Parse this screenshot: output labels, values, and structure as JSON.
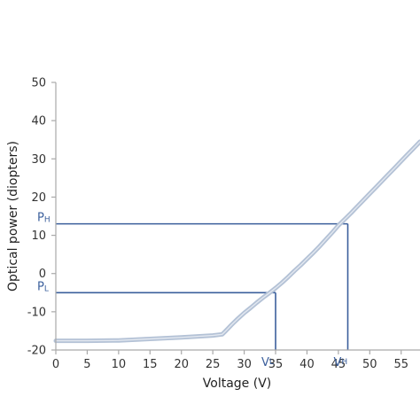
{
  "chart_data": {
    "type": "line",
    "title": "",
    "xlabel": "Voltage (V)",
    "ylabel": "Optical power (diopters)",
    "xlim": [
      0,
      58
    ],
    "ylim": [
      -20,
      50
    ],
    "grid": false,
    "x_ticks": [
      0,
      5,
      10,
      15,
      20,
      25,
      30,
      35,
      40,
      45,
      50,
      55
    ],
    "y_ticks": [
      -20,
      -10,
      0,
      10,
      20,
      30,
      40,
      50
    ],
    "series": [
      {
        "x": [
          0,
          5,
          10,
          15,
          20,
          25,
          26.5,
          27,
          28,
          29,
          30,
          31,
          32,
          33,
          34,
          35,
          36,
          37,
          38,
          39,
          40,
          41,
          42,
          43,
          44,
          45,
          46,
          47,
          48,
          49,
          50,
          51,
          52,
          53,
          54,
          55,
          56,
          57,
          58
        ],
        "y": [
          -17.6,
          -17.6,
          -17.5,
          -17.1,
          -16.7,
          -16.2,
          -15.9,
          -15.1,
          -13.4,
          -11.8,
          -10.3,
          -9.0,
          -7.6,
          -6.3,
          -5.1,
          -3.8,
          -2.4,
          -0.9,
          0.7,
          2.2,
          3.8,
          5.4,
          7.1,
          8.9,
          10.7,
          12.6,
          14.2,
          15.8,
          17.5,
          19.2,
          20.9,
          22.6,
          24.3,
          26.0,
          27.7,
          29.4,
          31.1,
          32.8,
          34.5
        ],
        "color": "#b4c2d6"
      }
    ],
    "reference_lines": {
      "color": "#3b5f9c",
      "points": [
        {
          "x": 35,
          "y": -5,
          "x_label": "V",
          "x_label_sub": "L",
          "y_label": "P",
          "y_label_sub": "L"
        },
        {
          "x": 46.5,
          "y": 13,
          "x_label": "V",
          "x_label_sub": "H",
          "y_label": "P",
          "y_label_sub": "H"
        }
      ]
    }
  }
}
